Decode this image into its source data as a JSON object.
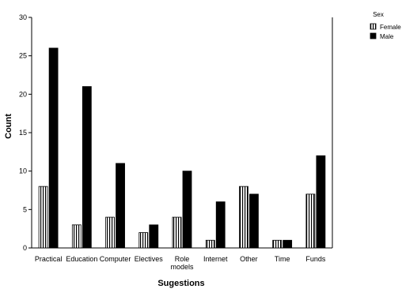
{
  "chart_data": {
    "type": "bar",
    "xlabel": "Sugestions",
    "ylabel": "Count",
    "ylim": [
      0,
      30
    ],
    "yticks": [
      0,
      5,
      10,
      15,
      20,
      25,
      30
    ],
    "categories": [
      [
        "Practical"
      ],
      [
        "Education"
      ],
      [
        "Computer"
      ],
      [
        "Electives"
      ],
      [
        "Role",
        "models"
      ],
      [
        "Internet"
      ],
      [
        "Other"
      ],
      [
        "Time"
      ],
      [
        "Funds"
      ]
    ],
    "series": [
      {
        "name": "Female",
        "pattern": "vertical-stripes",
        "values": [
          8,
          3,
          4,
          2,
          4,
          1,
          8,
          1,
          7
        ]
      },
      {
        "name": "Male",
        "pattern": "solid-black",
        "values": [
          26,
          21,
          11,
          3,
          10,
          6,
          7,
          1,
          12
        ]
      }
    ],
    "legend": {
      "title": "Sex",
      "placement": "top-right"
    },
    "grid": false
  }
}
